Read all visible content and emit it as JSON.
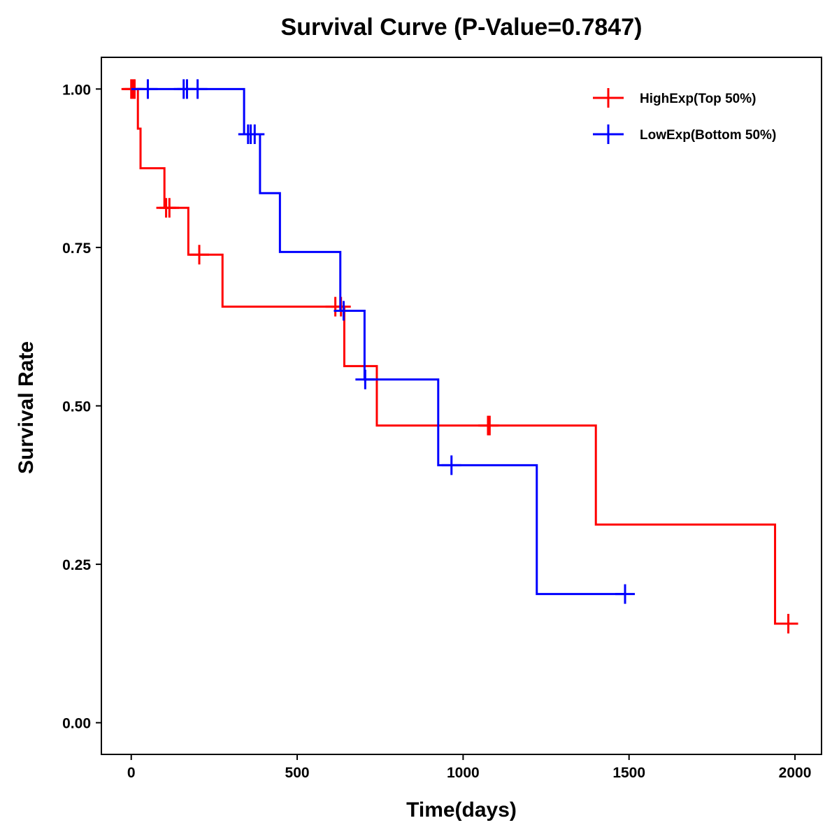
{
  "chart_data": {
    "type": "line",
    "subtype": "kaplan-meier",
    "title": "Survival Curve (P-Value=0.7847)",
    "xlabel": "Time(days)",
    "ylabel": "Survival Rate",
    "xlim": [
      -90,
      2080
    ],
    "ylim": [
      -0.05,
      1.05
    ],
    "xticks": [
      0,
      500,
      1000,
      1500,
      2000
    ],
    "xtick_labels": [
      "0",
      "500",
      "1000",
      "1500",
      "2000"
    ],
    "yticks": [
      0,
      0.25,
      0.5,
      0.75,
      1.0
    ],
    "ytick_labels": [
      "0.00",
      "0.25",
      "0.50",
      "0.75",
      "1.00"
    ],
    "grid": false,
    "legend": "top-right",
    "series": [
      {
        "name": "HighExp(Top 50%)",
        "color": "#ff0000",
        "steps": [
          {
            "time": 0,
            "survival": 1.0
          },
          {
            "time": 20,
            "survival": 0.9375
          },
          {
            "time": 28,
            "survival": 0.875
          },
          {
            "time": 100,
            "survival": 0.8125
          },
          {
            "time": 172,
            "survival": 0.7386
          },
          {
            "time": 275,
            "survival": 0.6566
          },
          {
            "time": 642,
            "survival": 0.5627
          },
          {
            "time": 740,
            "survival": 0.469
          },
          {
            "time": 1400,
            "survival": 0.3127
          },
          {
            "time": 1940,
            "survival": 0.1563
          }
        ],
        "end_time": 1980,
        "censored": [
          {
            "time": 0,
            "survival": 1.0
          },
          {
            "time": 5,
            "survival": 1.0
          },
          {
            "time": 10,
            "survival": 1.0
          },
          {
            "time": 105,
            "survival": 0.8125
          },
          {
            "time": 115,
            "survival": 0.8125
          },
          {
            "time": 205,
            "survival": 0.7386
          },
          {
            "time": 615,
            "survival": 0.6566
          },
          {
            "time": 632,
            "survival": 0.6566
          },
          {
            "time": 1075,
            "survival": 0.469
          },
          {
            "time": 1080,
            "survival": 0.469
          },
          {
            "time": 1980,
            "survival": 0.1563
          }
        ]
      },
      {
        "name": "LowExp(Bottom 50%)",
        "color": "#0000ff",
        "steps": [
          {
            "time": 0,
            "survival": 1.0
          },
          {
            "time": 340,
            "survival": 0.9286
          },
          {
            "time": 388,
            "survival": 0.8357
          },
          {
            "time": 448,
            "survival": 0.7429
          },
          {
            "time": 630,
            "survival": 0.65
          },
          {
            "time": 703,
            "survival": 0.5417
          },
          {
            "time": 925,
            "survival": 0.4063
          },
          {
            "time": 1222,
            "survival": 0.2031
          }
        ],
        "end_time": 1490,
        "censored": [
          {
            "time": 50,
            "survival": 1.0
          },
          {
            "time": 158,
            "survival": 1.0
          },
          {
            "time": 168,
            "survival": 1.0
          },
          {
            "time": 200,
            "survival": 1.0
          },
          {
            "time": 352,
            "survival": 0.9286
          },
          {
            "time": 360,
            "survival": 0.9286
          },
          {
            "time": 372,
            "survival": 0.9286
          },
          {
            "time": 640,
            "survival": 0.65
          },
          {
            "time": 705,
            "survival": 0.5417
          },
          {
            "time": 965,
            "survival": 0.4063
          },
          {
            "time": 1488,
            "survival": 0.2031
          }
        ]
      }
    ]
  }
}
